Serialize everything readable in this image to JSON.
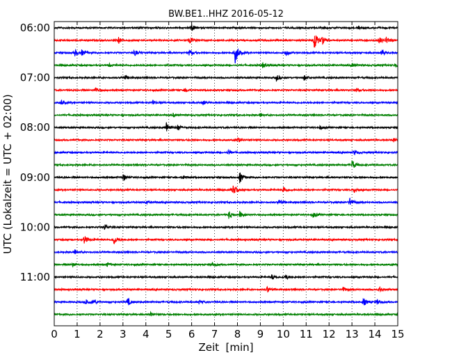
{
  "chart_data": {
    "type": "line",
    "title": "BW.BE1..HHZ 2016-05-12",
    "xlabel": "Zeit  [min]",
    "ylabel": "UTC (Lokalzeit = UTC + 02:00)",
    "xlim": [
      0,
      15
    ],
    "x_ticks": [
      "0",
      "1",
      "2",
      "3",
      "4",
      "5",
      "6",
      "7",
      "8",
      "9",
      "10",
      "11",
      "12",
      "13",
      "14",
      "15"
    ],
    "y_ticks": [
      "06:00",
      "07:00",
      "08:00",
      "09:00",
      "10:00",
      "11:00"
    ],
    "grid": true,
    "trace_interval_min": 15,
    "trace_start": "06:00",
    "trace_colors": [
      "#000000",
      "#ff0000",
      "#0000ff",
      "#008000"
    ],
    "traces": [
      {
        "start": "06:00",
        "color": "#000000",
        "events": [
          {
            "t": 6.0,
            "a": 0.5
          },
          {
            "t": 13.3,
            "a": 0.3
          }
        ]
      },
      {
        "start": "06:15",
        "color": "#ff0000",
        "events": [
          {
            "t": 2.8,
            "a": 0.5
          },
          {
            "t": 5.9,
            "a": 0.6
          },
          {
            "t": 11.35,
            "a": 1.6
          },
          {
            "t": 11.7,
            "a": 0.5
          },
          {
            "t": 14.2,
            "a": 0.5
          },
          {
            "t": 14.5,
            "a": 0.5
          }
        ]
      },
      {
        "start": "06:30",
        "color": "#0000ff",
        "events": [
          {
            "t": 0.9,
            "a": 0.5
          },
          {
            "t": 1.2,
            "a": 0.4
          },
          {
            "t": 3.5,
            "a": 0.5
          },
          {
            "t": 5.9,
            "a": 0.5
          },
          {
            "t": 7.9,
            "a": 1.6
          },
          {
            "t": 10.1,
            "a": 0.5
          },
          {
            "t": 14.3,
            "a": 0.5
          }
        ]
      },
      {
        "start": "06:45",
        "color": "#008000",
        "events": [
          {
            "t": 2.4,
            "a": 0.3
          },
          {
            "t": 9.1,
            "a": 0.4
          },
          {
            "t": 13.0,
            "a": 0.3
          },
          {
            "t": 14.9,
            "a": 0.3
          }
        ]
      },
      {
        "start": "07:00",
        "color": "#000000",
        "events": [
          {
            "t": 3.1,
            "a": 0.3
          },
          {
            "t": 9.7,
            "a": 0.5
          },
          {
            "t": 10.9,
            "a": 0.4
          }
        ]
      },
      {
        "start": "07:15",
        "color": "#ff0000",
        "events": [
          {
            "t": 1.8,
            "a": 0.5
          },
          {
            "t": 5.7,
            "a": 0.3
          },
          {
            "t": 13.2,
            "a": 0.3
          }
        ]
      },
      {
        "start": "07:30",
        "color": "#0000ff",
        "events": [
          {
            "t": 0.3,
            "a": 0.4
          },
          {
            "t": 4.3,
            "a": 0.3
          },
          {
            "t": 6.5,
            "a": 0.3
          }
        ]
      },
      {
        "start": "07:45",
        "color": "#008000",
        "events": [
          {
            "t": 5.2,
            "a": 0.3
          },
          {
            "t": 9.0,
            "a": 0.3
          }
        ]
      },
      {
        "start": "08:00",
        "color": "#000000",
        "events": [
          {
            "t": 4.9,
            "a": 0.9
          },
          {
            "t": 5.4,
            "a": 0.5
          },
          {
            "t": 11.6,
            "a": 0.3
          }
        ]
      },
      {
        "start": "08:15",
        "color": "#ff0000",
        "events": [
          {
            "t": 8.0,
            "a": 0.4
          },
          {
            "t": 14.8,
            "a": 0.3
          }
        ]
      },
      {
        "start": "08:30",
        "color": "#0000ff",
        "events": [
          {
            "t": 7.6,
            "a": 0.4
          },
          {
            "t": 13.1,
            "a": 0.4
          }
        ]
      },
      {
        "start": "08:45",
        "color": "#008000",
        "events": [
          {
            "t": 13.0,
            "a": 0.8
          }
        ]
      },
      {
        "start": "09:00",
        "color": "#000000",
        "events": [
          {
            "t": 3.0,
            "a": 0.6
          },
          {
            "t": 5.6,
            "a": 0.3
          },
          {
            "t": 8.1,
            "a": 0.9
          }
        ]
      },
      {
        "start": "09:15",
        "color": "#ff0000",
        "events": [
          {
            "t": 7.8,
            "a": 0.8
          },
          {
            "t": 10.0,
            "a": 0.6
          },
          {
            "t": 13.1,
            "a": 0.4
          }
        ]
      },
      {
        "start": "09:30",
        "color": "#0000ff",
        "events": [
          {
            "t": 4.0,
            "a": 0.3
          },
          {
            "t": 9.8,
            "a": 0.4
          },
          {
            "t": 12.9,
            "a": 0.6
          }
        ]
      },
      {
        "start": "09:45",
        "color": "#008000",
        "events": [
          {
            "t": 7.6,
            "a": 0.7
          },
          {
            "t": 8.1,
            "a": 0.5
          },
          {
            "t": 11.3,
            "a": 0.4
          }
        ]
      },
      {
        "start": "10:00",
        "color": "#000000",
        "events": [
          {
            "t": 2.2,
            "a": 0.5
          }
        ]
      },
      {
        "start": "10:15",
        "color": "#ff0000",
        "events": [
          {
            "t": 1.3,
            "a": 0.7
          },
          {
            "t": 2.6,
            "a": 0.8
          }
        ]
      },
      {
        "start": "10:30",
        "color": "#0000ff",
        "events": [
          {
            "t": 0.9,
            "a": 0.4
          }
        ]
      },
      {
        "start": "10:45",
        "color": "#008000",
        "events": [
          {
            "t": 0.8,
            "a": 0.3
          },
          {
            "t": 2.3,
            "a": 0.3
          },
          {
            "t": 6.9,
            "a": 0.3
          }
        ]
      },
      {
        "start": "11:00",
        "color": "#000000",
        "events": [
          {
            "t": 9.5,
            "a": 0.4
          },
          {
            "t": 10.1,
            "a": 0.4
          }
        ]
      },
      {
        "start": "11:15",
        "color": "#ff0000",
        "events": [
          {
            "t": 9.3,
            "a": 0.5
          },
          {
            "t": 12.6,
            "a": 0.4
          },
          {
            "t": 14.2,
            "a": 0.4
          }
        ]
      },
      {
        "start": "11:30",
        "color": "#0000ff",
        "events": [
          {
            "t": 1.4,
            "a": 0.5
          },
          {
            "t": 1.7,
            "a": 0.4
          },
          {
            "t": 3.2,
            "a": 0.6
          },
          {
            "t": 6.3,
            "a": 0.3
          },
          {
            "t": 13.5,
            "a": 0.6
          },
          {
            "t": 14.1,
            "a": 0.4
          }
        ]
      },
      {
        "start": "11:45",
        "color": "#008000",
        "events": [
          {
            "t": 4.2,
            "a": 0.3
          }
        ]
      }
    ]
  }
}
